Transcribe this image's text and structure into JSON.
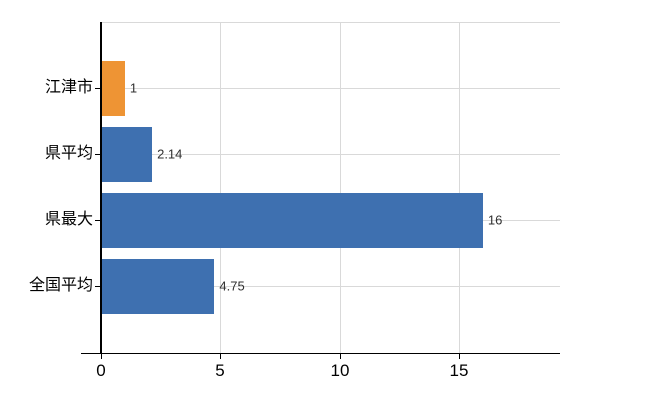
{
  "chart_data": {
    "type": "bar",
    "orientation": "horizontal",
    "title": "",
    "xlabel": "",
    "ylabel": "",
    "categories": [
      "江津市",
      "県平均",
      "県最大",
      "全国平均"
    ],
    "values": [
      1,
      2.14,
      16,
      4.75
    ],
    "value_labels": [
      "1",
      "2.14",
      "16",
      "4.75"
    ],
    "bar_colors": [
      "#EE9434",
      "#3E70B0",
      "#3E70B0",
      "#3E70B0"
    ],
    "x_ticks": [
      0,
      5,
      10,
      15
    ],
    "x_tick_labels": [
      "0",
      "5",
      "10",
      "15"
    ],
    "xlim": [
      0,
      19.2
    ],
    "grid": true,
    "legend": false,
    "gridline_color": "#d9d9d9",
    "axis_color": "#000000",
    "value_label_color": "#303030",
    "background_color": "#ffffff"
  }
}
